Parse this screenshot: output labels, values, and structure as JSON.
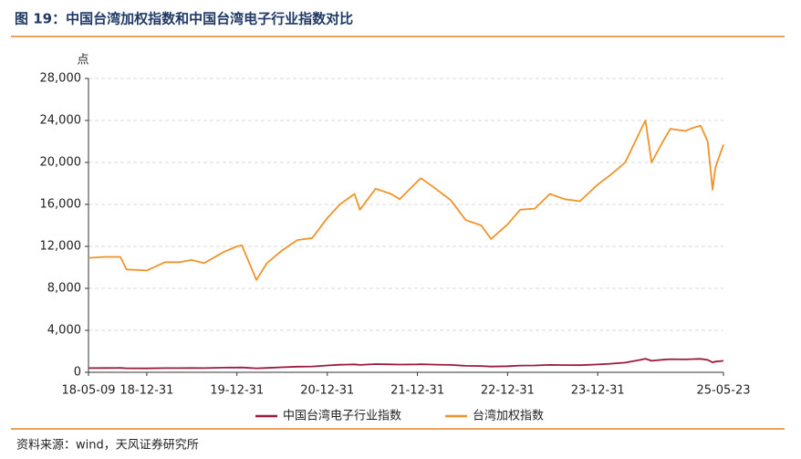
{
  "chart_data": {
    "type": "line",
    "title": "图 19：中国台湾加权指数和中国台湾电子行业指数对比",
    "y_label": "点",
    "source": "资料来源：wind，天风证券研究所",
    "x": [
      "18-05-09",
      "18-07-15",
      "18-09-15",
      "18-10-10",
      "18-12-31",
      "19-03-15",
      "19-05-15",
      "19-06-30",
      "19-08-20",
      "19-11-10",
      "19-12-31",
      "20-01-20",
      "20-03-19",
      "20-04-30",
      "20-06-30",
      "20-08-31",
      "20-10-31",
      "20-12-31",
      "21-02-20",
      "21-04-20",
      "21-05-12",
      "21-07-15",
      "21-09-15",
      "21-10-20",
      "21-12-31",
      "22-01-15",
      "22-03-15",
      "22-05-15",
      "22-07-15",
      "22-09-15",
      "22-10-25",
      "22-12-31",
      "23-02-20",
      "23-04-20",
      "23-06-20",
      "23-08-20",
      "23-10-20",
      "23-12-31",
      "24-02-20",
      "24-04-20",
      "24-06-20",
      "24-07-11",
      "24-08-05",
      "24-09-20",
      "24-10-20",
      "24-12-20",
      "25-01-20",
      "25-02-20",
      "25-03-20",
      "25-04-09",
      "25-04-20",
      "25-05-23"
    ],
    "series": [
      {
        "name": "中国台湾电子行业指数",
        "color": "#9b1b3d",
        "values": [
          400,
          410,
          420,
          380,
          370,
          400,
          400,
          410,
          400,
          440,
          450,
          460,
          380,
          420,
          480,
          540,
          560,
          650,
          720,
          760,
          700,
          780,
          760,
          740,
          760,
          770,
          730,
          700,
          620,
          600,
          550,
          580,
          640,
          650,
          700,
          690,
          680,
          750,
          820,
          920,
          1180,
          1300,
          1100,
          1200,
          1250,
          1230,
          1260,
          1280,
          1180,
          950,
          1020,
          1100
        ]
      },
      {
        "name": "台湾加权指数",
        "color": "#f0932b",
        "values": [
          10900,
          11000,
          11000,
          9800,
          9700,
          10500,
          10500,
          10700,
          10400,
          11500,
          12000,
          12100,
          8800,
          10400,
          11600,
          12600,
          12800,
          14700,
          16000,
          17000,
          15500,
          17500,
          17000,
          16500,
          18200,
          18500,
          17500,
          16400,
          14500,
          14000,
          12700,
          14100,
          15500,
          15600,
          17000,
          16500,
          16300,
          17900,
          18800,
          20000,
          23000,
          24000,
          20000,
          22000,
          23200,
          23000,
          23300,
          23500,
          22000,
          17400,
          19500,
          21700
        ]
      }
    ],
    "xlim": [
      "18-05-09",
      "25-05-23"
    ],
    "xticks": [
      "18-05-09",
      "18-12-31",
      "19-12-31",
      "20-12-31",
      "21-12-31",
      "22-12-31",
      "23-12-31",
      "25-05-23"
    ],
    "ylim": [
      0,
      28000
    ],
    "yticks": [
      0,
      {
        "value": 4000,
        "label": "4,000"
      },
      {
        "value": 8000,
        "label": "8,000"
      },
      {
        "value": 12000,
        "label": "12,000"
      },
      {
        "value": 16000,
        "label": "16,000"
      },
      {
        "value": 20000,
        "label": "20,000"
      },
      {
        "value": 24000,
        "label": "24,000"
      },
      {
        "value": 28000,
        "label": "28,000"
      }
    ],
    "grid": true
  }
}
